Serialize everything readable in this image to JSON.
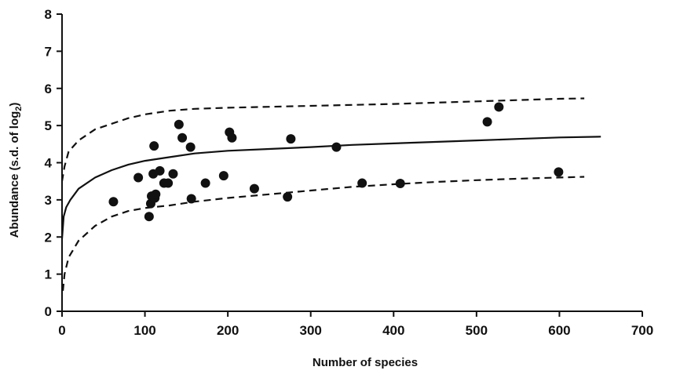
{
  "chart_data": {
    "type": "scatter",
    "xlabel": "Number of species",
    "ylabel": {
      "text": "Abundance (s.d. of log",
      "subscript": "2",
      "suffix": ")"
    },
    "xlim": [
      0,
      700
    ],
    "ylim": [
      0,
      8
    ],
    "x_ticks": [
      0,
      100,
      200,
      300,
      400,
      500,
      600,
      700
    ],
    "y_ticks": [
      0,
      1,
      2,
      3,
      4,
      5,
      6,
      7,
      8
    ],
    "grid": false,
    "legend": "none",
    "points": [
      {
        "x": 62,
        "y": 2.95
      },
      {
        "x": 92,
        "y": 3.6
      },
      {
        "x": 105,
        "y": 2.55
      },
      {
        "x": 107,
        "y": 2.9
      },
      {
        "x": 108,
        "y": 3.1
      },
      {
        "x": 110,
        "y": 3.7
      },
      {
        "x": 111,
        "y": 4.45
      },
      {
        "x": 112,
        "y": 3.05
      },
      {
        "x": 113,
        "y": 3.15
      },
      {
        "x": 118,
        "y": 3.78
      },
      {
        "x": 123,
        "y": 3.45
      },
      {
        "x": 128,
        "y": 3.45
      },
      {
        "x": 134,
        "y": 3.7
      },
      {
        "x": 141,
        "y": 5.03
      },
      {
        "x": 145,
        "y": 4.67
      },
      {
        "x": 155,
        "y": 4.42
      },
      {
        "x": 156,
        "y": 3.03
      },
      {
        "x": 173,
        "y": 3.45
      },
      {
        "x": 195,
        "y": 3.65
      },
      {
        "x": 202,
        "y": 4.82
      },
      {
        "x": 205,
        "y": 4.67
      },
      {
        "x": 232,
        "y": 3.3
      },
      {
        "x": 272,
        "y": 3.08
      },
      {
        "x": 276,
        "y": 4.64
      },
      {
        "x": 331,
        "y": 4.42
      },
      {
        "x": 362,
        "y": 3.45
      },
      {
        "x": 408,
        "y": 3.44
      },
      {
        "x": 513,
        "y": 5.1
      },
      {
        "x": 527,
        "y": 5.5
      },
      {
        "x": 599,
        "y": 3.75
      }
    ],
    "curves": [
      {
        "style": "solid",
        "points": [
          [
            0,
            1.95
          ],
          [
            2,
            2.55
          ],
          [
            5,
            2.8
          ],
          [
            10,
            3.0
          ],
          [
            20,
            3.3
          ],
          [
            40,
            3.6
          ],
          [
            60,
            3.8
          ],
          [
            80,
            3.95
          ],
          [
            100,
            4.05
          ],
          [
            130,
            4.15
          ],
          [
            160,
            4.25
          ],
          [
            200,
            4.32
          ],
          [
            250,
            4.37
          ],
          [
            300,
            4.42
          ],
          [
            350,
            4.48
          ],
          [
            400,
            4.52
          ],
          [
            450,
            4.56
          ],
          [
            500,
            4.6
          ],
          [
            550,
            4.64
          ],
          [
            600,
            4.68
          ],
          [
            650,
            4.7
          ]
        ]
      },
      {
        "style": "dashed",
        "points": [
          [
            0,
            3.5
          ],
          [
            3,
            3.9
          ],
          [
            8,
            4.3
          ],
          [
            20,
            4.6
          ],
          [
            40,
            4.9
          ],
          [
            60,
            5.05
          ],
          [
            80,
            5.2
          ],
          [
            100,
            5.3
          ],
          [
            130,
            5.4
          ],
          [
            160,
            5.45
          ],
          [
            200,
            5.48
          ],
          [
            300,
            5.53
          ],
          [
            400,
            5.58
          ],
          [
            500,
            5.65
          ],
          [
            600,
            5.72
          ],
          [
            630,
            5.73
          ]
        ]
      },
      {
        "style": "dashed",
        "points": [
          [
            1,
            0.55
          ],
          [
            3,
            1.0
          ],
          [
            8,
            1.45
          ],
          [
            20,
            1.9
          ],
          [
            40,
            2.3
          ],
          [
            60,
            2.55
          ],
          [
            80,
            2.7
          ],
          [
            100,
            2.78
          ],
          [
            130,
            2.85
          ],
          [
            160,
            2.95
          ],
          [
            200,
            3.05
          ],
          [
            250,
            3.15
          ],
          [
            300,
            3.25
          ],
          [
            350,
            3.35
          ],
          [
            400,
            3.42
          ],
          [
            450,
            3.48
          ],
          [
            500,
            3.53
          ],
          [
            550,
            3.57
          ],
          [
            600,
            3.6
          ],
          [
            630,
            3.62
          ]
        ]
      }
    ]
  }
}
